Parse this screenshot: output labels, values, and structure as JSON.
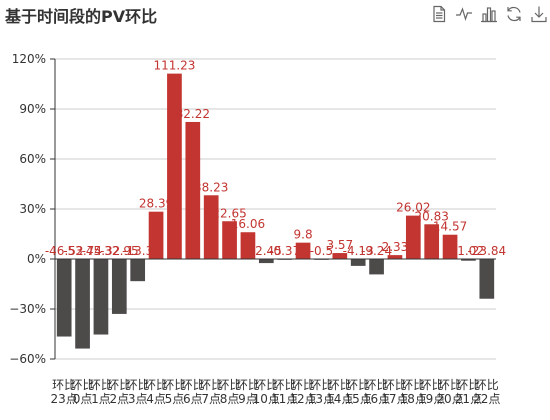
{
  "title": "基于时间段的PV环比",
  "toolbox": [
    {
      "name": "data-view-icon",
      "icon": "doc"
    },
    {
      "name": "line-chart-icon",
      "icon": "line"
    },
    {
      "name": "bar-chart-icon",
      "icon": "bar"
    },
    {
      "name": "restore-icon",
      "icon": "refresh"
    },
    {
      "name": "save-image-icon",
      "icon": "download"
    }
  ],
  "colors": {
    "positive": "#c23531",
    "negative": "#4d4a4a",
    "grid": "#cccccc",
    "axis": "#333333",
    "label": "#c23531"
  },
  "chart_data": {
    "type": "bar",
    "title": "基于时间段的PV环比",
    "categories": [
      "环比23点",
      "环比0点",
      "环比1点",
      "环比2点",
      "环比3点",
      "环比4点",
      "环比5点",
      "环比6点",
      "环比7点",
      "环比8点",
      "环比9点",
      "环比10点",
      "环比11点",
      "环比12点",
      "环比13点",
      "环比14点",
      "环比15点",
      "环比16点",
      "环比17点",
      "环比18点",
      "环比19点",
      "环比20点",
      "环比21点",
      "环比22点"
    ],
    "values": [
      -46.52,
      -53.74,
      -45.32,
      -32.95,
      -13.3,
      28.39,
      111.23,
      82.22,
      38.23,
      22.65,
      16.06,
      -2.45,
      -0.37,
      9.8,
      -0.5,
      3.57,
      -4.13,
      -9.24,
      2.33,
      26.02,
      20.83,
      14.57,
      -1.02,
      -23.84
    ],
    "labels": [
      "-46.52",
      "-53.74",
      "-45.32",
      "-32.95",
      "-13.3",
      "28.39",
      "111.23",
      "82.22",
      "38.23",
      "22.65",
      "16.06",
      "-2.45",
      "-0.37",
      "9.8",
      "-0.5",
      "3.57",
      "-4.13",
      "-9.24",
      "2.33",
      "26.02",
      "20.83",
      "14.57",
      "-1.02",
      "-23.84"
    ],
    "yticks": [
      "120%",
      "90%",
      "60%",
      "30%",
      "0%",
      "−30%",
      "−60%"
    ],
    "ylim": [
      -60,
      120
    ],
    "grid": true
  }
}
